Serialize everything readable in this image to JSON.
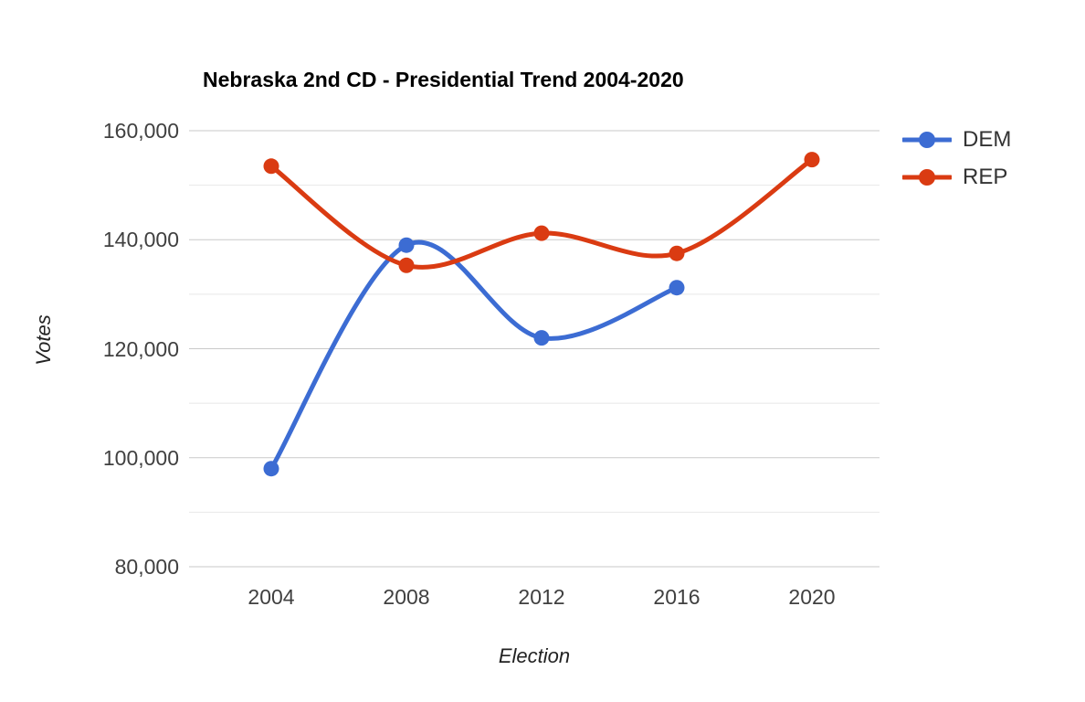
{
  "chart_data": {
    "type": "line",
    "title": "Nebraska 2nd CD - Presidential Trend 2004-2020",
    "xlabel": "Election",
    "ylabel": "Votes",
    "categories": [
      "2004",
      "2008",
      "2012",
      "2016",
      "2020"
    ],
    "series": [
      {
        "name": "DEM",
        "color": "#3C6CD3",
        "values": [
          98000,
          139000,
          122000,
          131200,
          null
        ]
      },
      {
        "name": "REP",
        "color": "#DA3B12",
        "values": [
          153500,
          135300,
          141200,
          137500,
          154700
        ]
      }
    ],
    "ylim": [
      80000,
      160000
    ],
    "y_major_ticks": [
      {
        "value": 160000,
        "label": "160,000"
      },
      {
        "value": 140000,
        "label": "140,000"
      },
      {
        "value": 120000,
        "label": "120,000"
      },
      {
        "value": 100000,
        "label": "100,000"
      },
      {
        "value": 80000,
        "label": "80,000"
      }
    ],
    "grid": {
      "minor_step": 10000,
      "major_step": 20000,
      "major_color": "#C9C9C9",
      "minor_color": "#E8E8E8"
    },
    "line_style": "smooth",
    "marker": "circle",
    "legend_position": "right",
    "text_colors": {
      "title": "#000000",
      "tick": "#404040",
      "axis_title": "#222222",
      "legend": "#333333"
    }
  }
}
